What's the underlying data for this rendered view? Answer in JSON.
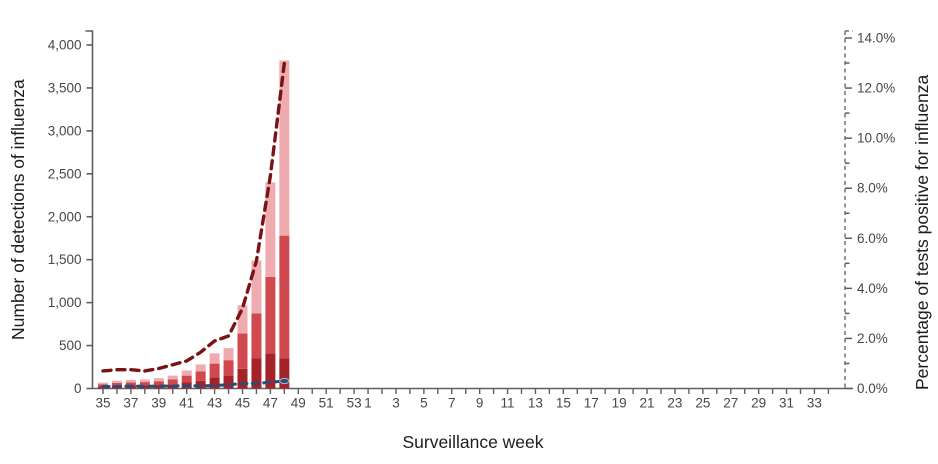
{
  "chart_data": {
    "type": "bar",
    "title": "",
    "xlabel": "Surveillance week",
    "ylabel_left": "Number of detections of influenza",
    "ylabel_right": "Percentage of tests positive for influenza",
    "legend": "none shown",
    "x_weeks": [
      35,
      36,
      37,
      38,
      39,
      40,
      41,
      42,
      43,
      44,
      45,
      46,
      47,
      48,
      49,
      50,
      51,
      52,
      53,
      1,
      2,
      3,
      4,
      5,
      6,
      7,
      8,
      9,
      10,
      11,
      12,
      13,
      14,
      15,
      16,
      17,
      18,
      19,
      20,
      21,
      22,
      23,
      24,
      25,
      26,
      27,
      28,
      29,
      30,
      31,
      32,
      33,
      34
    ],
    "x_labeled_weeks": [
      35,
      37,
      39,
      41,
      43,
      45,
      47,
      49,
      51,
      53,
      1,
      3,
      5,
      7,
      9,
      11,
      13,
      15,
      17,
      19,
      21,
      23,
      25,
      27,
      29,
      31,
      33
    ],
    "left_axis": {
      "min": 0,
      "max": 4000,
      "tick_step": 500,
      "tick_labels": [
        "0",
        "500",
        "1,000",
        "1,500",
        "2,000",
        "2,500",
        "3,000",
        "3,500",
        "4,000"
      ]
    },
    "right_axis": {
      "min": 0,
      "max": 14,
      "tick_step": 2,
      "minor_step": 1,
      "tick_labels": [
        "0.0%",
        "2.0%",
        "4.0%",
        "6.0%",
        "8.0%",
        "10.0%",
        "12.0%",
        "14.0%"
      ]
    },
    "bars": {
      "weeks": [
        35,
        36,
        37,
        38,
        39,
        40,
        41,
        42,
        43,
        44,
        45,
        46,
        47,
        48
      ],
      "totals": [
        70,
        90,
        100,
        105,
        120,
        150,
        210,
        280,
        410,
        470,
        970,
        1490,
        2400,
        3820
      ],
      "stack_series": [
        {
          "name": "detections-dark-red-bottom",
          "color": "#a42328",
          "values": [
            25,
            30,
            35,
            35,
            40,
            50,
            70,
            90,
            130,
            150,
            230,
            350,
            410,
            350
          ]
        },
        {
          "name": "detections-medium-red-middle",
          "color": "#d0494e",
          "values": [
            25,
            35,
            35,
            40,
            45,
            55,
            80,
            110,
            160,
            180,
            410,
            525,
            890,
            1430
          ]
        },
        {
          "name": "detections-light-pink-top",
          "color": "#efacb0",
          "values": [
            20,
            25,
            30,
            30,
            35,
            45,
            60,
            80,
            120,
            140,
            330,
            615,
            1100,
            2040
          ]
        }
      ]
    },
    "line_series": [
      {
        "name": "percent-tests-positive-dashed-maroon",
        "color": "#7a1316",
        "dash": "8 6",
        "width": 3.4,
        "weeks": [
          35,
          36,
          37,
          38,
          39,
          40,
          41,
          42,
          43,
          44,
          45,
          46,
          47,
          48
        ],
        "values": [
          0.7,
          0.75,
          0.75,
          0.7,
          0.8,
          0.95,
          1.1,
          1.45,
          1.9,
          2.1,
          3.2,
          5.1,
          8.5,
          13.0
        ]
      },
      {
        "name": "secondary-percent-dashed-navy",
        "color": "#2d4b73",
        "dash": "6 5.5",
        "width": 3.1,
        "weeks": [
          35,
          36,
          37,
          38,
          39,
          40,
          41,
          42,
          43,
          44,
          45,
          46,
          47,
          48
        ],
        "values": [
          0.08,
          0.08,
          0.1,
          0.08,
          0.1,
          0.1,
          0.12,
          0.1,
          0.12,
          0.15,
          0.2,
          0.2,
          0.25,
          0.3
        ]
      }
    ],
    "grid": "off",
    "colors": {
      "axis": "#5b6064",
      "tick_text": "#474747",
      "title_text": "#1d1d1d",
      "right_axis_dash": "#6e7276"
    }
  },
  "labels": {
    "y_left": "Number of detections of influenza",
    "y_right": "Percentage of tests positive for influenza",
    "x": "Surveillance week"
  }
}
